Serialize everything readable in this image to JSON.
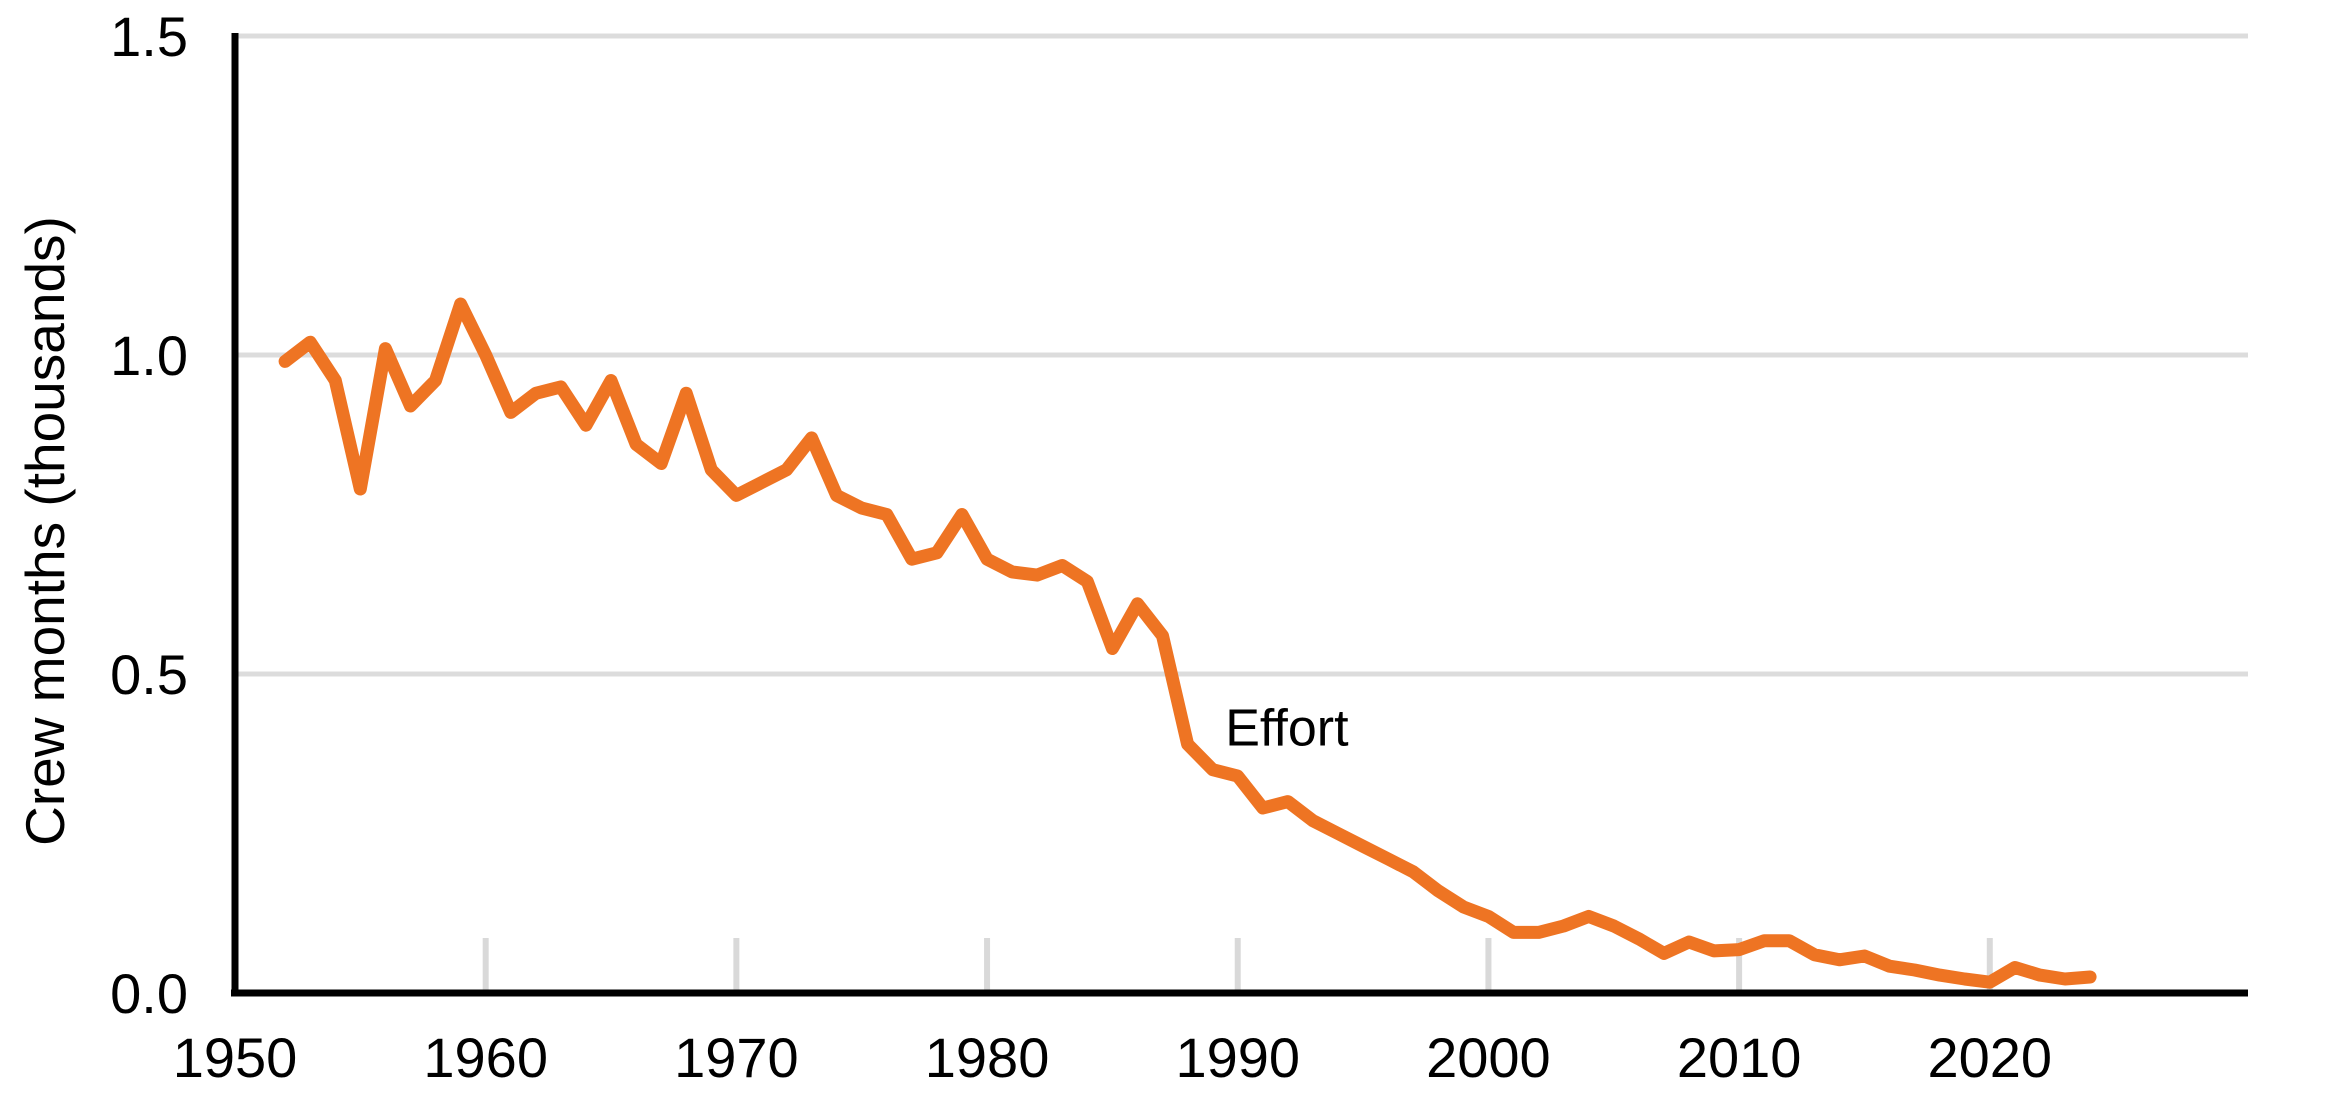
{
  "chart_data": {
    "type": "line",
    "title": "",
    "xlabel": "",
    "ylabel": "Crew months (thousands)",
    "grid": "horizontal",
    "legend_position": "none",
    "xlim": [
      1950,
      2030.3
    ],
    "ylim": [
      0,
      1.5
    ],
    "y_ticks": [
      {
        "value": 0.0,
        "label": "0.0"
      },
      {
        "value": 0.5,
        "label": "0.5"
      },
      {
        "value": 1.0,
        "label": "1.0"
      },
      {
        "value": 1.5,
        "label": "1.5"
      }
    ],
    "x_tick_labels": [
      {
        "year": 1950,
        "label": "1950"
      },
      {
        "year": 1960,
        "label": "1960"
      },
      {
        "year": 1970,
        "label": "1970"
      },
      {
        "year": 1980,
        "label": "1980"
      },
      {
        "year": 1990,
        "label": "1990"
      },
      {
        "year": 2000,
        "label": "2000"
      },
      {
        "year": 2010,
        "label": "2010"
      },
      {
        "year": 2020,
        "label": "2020"
      }
    ],
    "x_tick_marks": [
      1960,
      1970,
      1980,
      1990,
      2000,
      2010,
      2020
    ],
    "gridline_values": [
      0.5,
      1.0,
      1.5
    ],
    "annotation": {
      "text": "Effort",
      "year": 1989.5,
      "value": 0.388
    },
    "series": [
      {
        "name": "Effort",
        "color": "#EE7423",
        "x": [
          1952,
          1953,
          1954,
          1955,
          1956,
          1957,
          1958,
          1959,
          1960,
          1961,
          1962,
          1963,
          1964,
          1965,
          1966,
          1967,
          1968,
          1969,
          1970,
          1971,
          1972,
          1973,
          1974,
          1975,
          1976,
          1977,
          1978,
          1979,
          1980,
          1981,
          1982,
          1983,
          1984,
          1985,
          1986,
          1987,
          1988,
          1989,
          1990,
          1991,
          1992,
          1993,
          1994,
          1995,
          1996,
          1997,
          1998,
          1999,
          2000,
          2001,
          2002,
          2003,
          2004,
          2005,
          2006,
          2007,
          2008,
          2009,
          2010,
          2011,
          2012,
          2013,
          2014,
          2015,
          2016,
          2017,
          2018,
          2019,
          2020,
          2021,
          2022,
          2023,
          2024
        ],
        "values": [
          0.99,
          1.02,
          0.96,
          0.79,
          1.01,
          0.92,
          0.96,
          1.08,
          1.0,
          0.91,
          0.94,
          0.95,
          0.89,
          0.96,
          0.86,
          0.83,
          0.94,
          0.82,
          0.78,
          0.8,
          0.82,
          0.87,
          0.78,
          0.76,
          0.75,
          0.68,
          0.69,
          0.75,
          0.68,
          0.66,
          0.655,
          0.67,
          0.645,
          0.54,
          0.61,
          0.56,
          0.39,
          0.35,
          0.34,
          0.29,
          0.3,
          0.27,
          0.25,
          0.23,
          0.21,
          0.19,
          0.16,
          0.135,
          0.12,
          0.095,
          0.095,
          0.105,
          0.12,
          0.105,
          0.085,
          0.062,
          0.08,
          0.066,
          0.068,
          0.082,
          0.082,
          0.06,
          0.052,
          0.058,
          0.042,
          0.036,
          0.028,
          0.022,
          0.017,
          0.04,
          0.028,
          0.022,
          0.025
        ]
      }
    ],
    "colors": {
      "line": "#EE7423",
      "gridline": "#DCDCDC",
      "tick_mark": "#D9D9D9",
      "axis": "#000000",
      "text": "#000000",
      "background": "#FFFFFF"
    }
  }
}
